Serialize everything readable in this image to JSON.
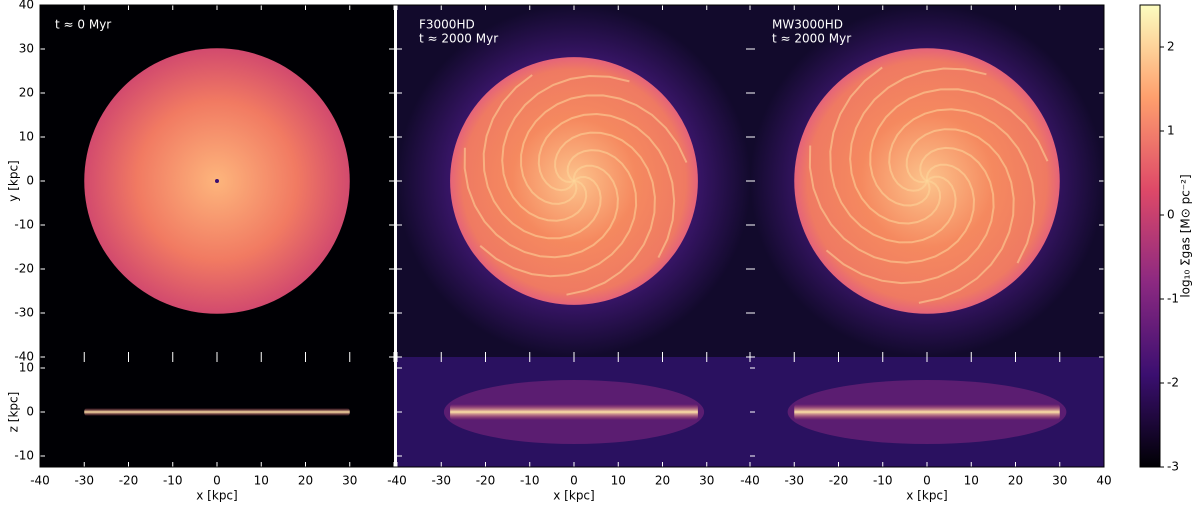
{
  "chart_data": {
    "type": "image",
    "x_label": "x [kpc]",
    "y_label": "y [kpc]",
    "z_label": "z [kpc]",
    "xlim": [
      -40,
      40
    ],
    "xticks": [
      -40,
      -30,
      -20,
      -10,
      0,
      10,
      20,
      30,
      40
    ],
    "ylim": [
      -40,
      40
    ],
    "yticks": [
      -40,
      -30,
      -20,
      -10,
      0,
      10,
      20,
      30,
      40
    ],
    "zlim": [
      -12.5,
      12.5
    ],
    "zticks": [
      -10,
      0,
      10
    ],
    "panels": [
      {
        "texts": [
          "t ≈ 0 Myr"
        ],
        "radius": 30
      },
      {
        "texts": [
          "F3000HD",
          "t ≈ 2000 Myr"
        ],
        "radius": 28
      },
      {
        "texts": [
          "MW3000HD",
          "t ≈ 2000 Myr"
        ],
        "radius": 30
      }
    ],
    "colorbar": {
      "label": "log₁₀ Σgas [M⊙ pc⁻²]",
      "lim": [
        -3,
        2.5
      ],
      "ticks": [
        -3,
        -2,
        -1,
        0,
        1,
        2
      ],
      "colormap": [
        "#000004",
        "#3b0f70",
        "#8c2981",
        "#de4968",
        "#fe9f6d",
        "#fcfdbf"
      ]
    }
  }
}
